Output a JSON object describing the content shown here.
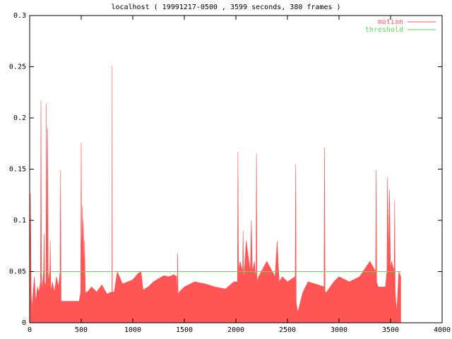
{
  "chart_data": {
    "type": "impulse-plot",
    "title": "localhost ( 19991217-0500 , 3599 seconds, 380 frames )",
    "legend": "top-right",
    "xlim": [
      0,
      4000
    ],
    "xticks": [
      0,
      500,
      1000,
      1500,
      2000,
      2500,
      3000,
      3500,
      4000
    ],
    "ylim": [
      0,
      0.3
    ],
    "yticks": [
      0,
      0.05,
      0.1,
      0.15,
      0.2,
      0.25,
      0.3
    ],
    "series": [
      {
        "name": "motion",
        "type": "area",
        "color": "#ff5555",
        "x": [
          0,
          3,
          8,
          15,
          22,
          30,
          45,
          60,
          75,
          90,
          105,
          110,
          115,
          135,
          140,
          145,
          158,
          162,
          170,
          175,
          180,
          195,
          200,
          205,
          220,
          240,
          260,
          280,
          295,
          300,
          305,
          320,
          400,
          480,
          495,
          500,
          505,
          512,
          515,
          520,
          528,
          532,
          540,
          560,
          600,
          650,
          700,
          750,
          790,
          798,
          800,
          802,
          820,
          850,
          900,
          950,
          1000,
          1050,
          1080,
          1100,
          1150,
          1200,
          1250,
          1300,
          1350,
          1400,
          1425,
          1430,
          1435,
          1440,
          1450,
          1500,
          1600,
          1700,
          1800,
          1900,
          1980,
          2015,
          2020,
          2025,
          2040,
          2065,
          2070,
          2075,
          2100,
          2140,
          2150,
          2160,
          2180,
          2195,
          2200,
          2205,
          2220,
          2300,
          2380,
          2400,
          2420,
          2450,
          2500,
          2575,
          2580,
          2585,
          2600,
          2650,
          2700,
          2800,
          2855,
          2860,
          2865,
          2880,
          2950,
          3000,
          3100,
          3200,
          3300,
          3355,
          3360,
          3365,
          3380,
          3450,
          3465,
          3470,
          3480,
          3490,
          3500,
          3510,
          3535,
          3540,
          3545,
          3560,
          3580,
          3599
        ],
        "values": [
          0.165,
          0.04,
          0.126,
          0.03,
          0.012,
          0.025,
          0.045,
          0.02,
          0.035,
          0.03,
          0.04,
          0.217,
          0.03,
          0.05,
          0.087,
          0.035,
          0.04,
          0.214,
          0.05,
          0.19,
          0.04,
          0.05,
          0.08,
          0.03,
          0.04,
          0.03,
          0.045,
          0.035,
          0.05,
          0.149,
          0.021,
          0.021,
          0.021,
          0.021,
          0.03,
          0.176,
          0.05,
          0.114,
          0.06,
          0.1,
          0.04,
          0.08,
          0.03,
          0.03,
          0.035,
          0.03,
          0.037,
          0.028,
          0.03,
          0.03,
          0.251,
          0.03,
          0.03,
          0.05,
          0.038,
          0.04,
          0.042,
          0.048,
          0.05,
          0.032,
          0.035,
          0.04,
          0.043,
          0.046,
          0.045,
          0.047,
          0.045,
          0.02,
          0.068,
          0.025,
          0.03,
          0.035,
          0.04,
          0.038,
          0.035,
          0.033,
          0.04,
          0.04,
          0.167,
          0.05,
          0.06,
          0.05,
          0.09,
          0.04,
          0.08,
          0.05,
          0.1,
          0.05,
          0.06,
          0.04,
          0.165,
          0.04,
          0.045,
          0.06,
          0.045,
          0.08,
          0.04,
          0.045,
          0.04,
          0.045,
          0.155,
          0.02,
          0.01,
          0.03,
          0.04,
          0.037,
          0.035,
          0.171,
          0.03,
          0.03,
          0.04,
          0.045,
          0.04,
          0.045,
          0.06,
          0.05,
          0.149,
          0.04,
          0.035,
          0.035,
          0.05,
          0.142,
          0.06,
          0.13,
          0.05,
          0.06,
          0.05,
          0.12,
          0.03,
          0.01,
          0.05,
          0.045
        ]
      },
      {
        "name": "threshold",
        "type": "line",
        "color": "#55dd55",
        "x": [
          0,
          3599
        ],
        "values": [
          0.05,
          0.05
        ]
      }
    ]
  }
}
